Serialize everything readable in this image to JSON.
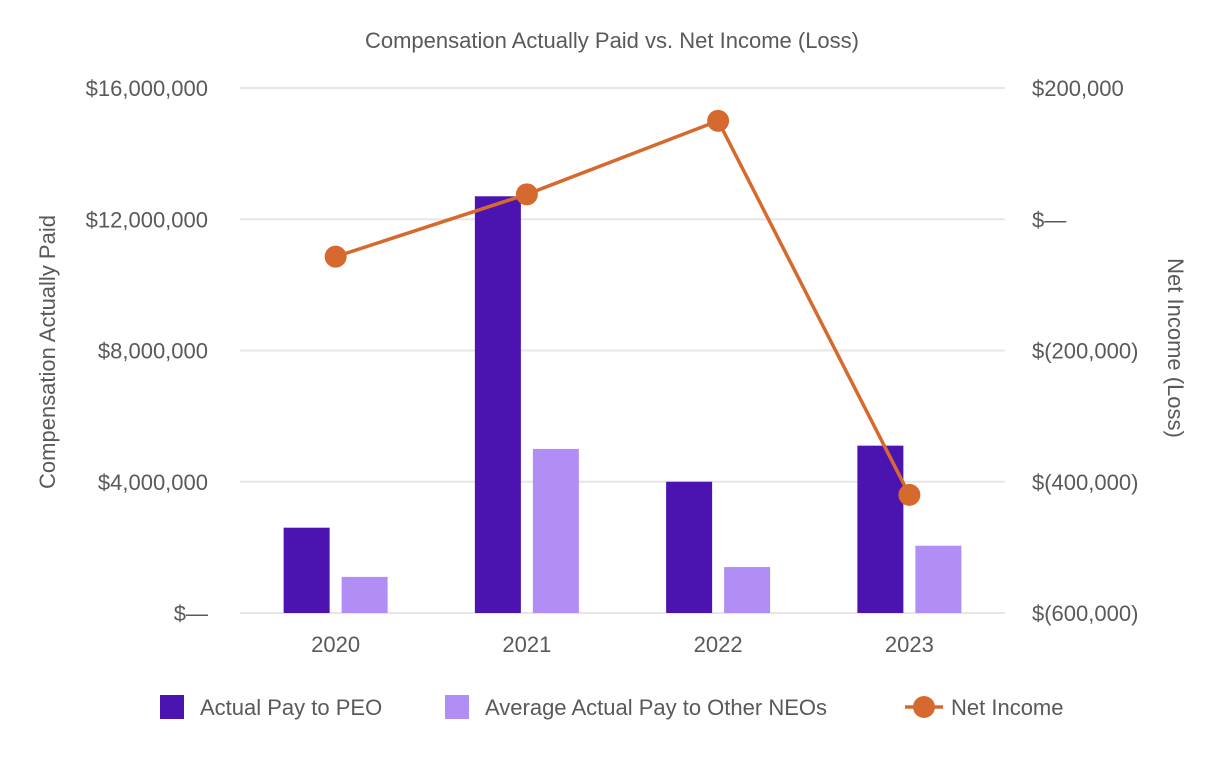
{
  "chart_data": {
    "type": "bar+line",
    "title": "Compensation Actually Paid vs. Net Income (Loss)",
    "categories": [
      "2020",
      "2021",
      "2022",
      "2023"
    ],
    "y_left": {
      "label": "Compensation Actually Paid",
      "range": [
        0,
        16000000
      ],
      "ticks": [
        0,
        4000000,
        8000000,
        12000000,
        16000000
      ],
      "tick_labels": [
        "$—",
        "$4,000,000",
        "$8,000,000",
        "$12,000,000",
        "$16,000,000"
      ]
    },
    "y_right": {
      "label": "Net Income (Loss)",
      "range": [
        -600000,
        200000
      ],
      "ticks": [
        -600000,
        -400000,
        -200000,
        0,
        200000
      ],
      "tick_labels": [
        "$(600,000)",
        "$(400,000)",
        "$(200,000)",
        "$—",
        "$200,000"
      ]
    },
    "series": [
      {
        "name": "Actual Pay to PEO",
        "type": "bar",
        "axis": "left",
        "color": "#4b14b0",
        "values": [
          2600000,
          12700000,
          4000000,
          5100000
        ]
      },
      {
        "name": "Average Actual Pay to Other NEOs",
        "type": "bar",
        "axis": "left",
        "color": "#b18ef5",
        "values": [
          1100000,
          5000000,
          1400000,
          2050000
        ]
      },
      {
        "name": "Net Income",
        "type": "line",
        "axis": "right",
        "color": "#d66a2e",
        "values": [
          -57000,
          38000,
          150000,
          -420000
        ]
      }
    ],
    "grid": true,
    "legend_position": "bottom"
  }
}
